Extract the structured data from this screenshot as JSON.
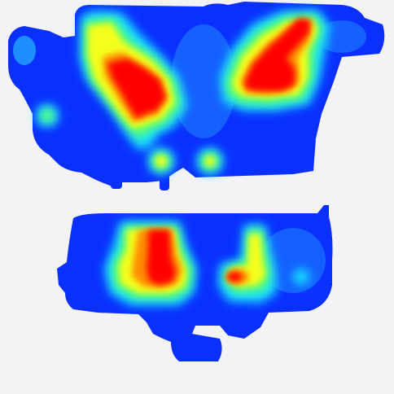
{
  "colors": {
    "background": "#f3f2f4",
    "cold": "#0a30ff",
    "cool": "#1e8fff",
    "cyan": "#19e2ff",
    "green": "#64ff64",
    "yellow": "#f4ff1e",
    "orange": "#ff8c00",
    "hot": "#ff0000"
  },
  "chart_data": {
    "type": "heatmap",
    "title": "",
    "xlabel": "",
    "ylabel": "",
    "legend": "none",
    "grid": false,
    "colormap": [
      "#0a30ff",
      "#1e8fff",
      "#19e2ff",
      "#64ff64",
      "#f4ff1e",
      "#ff8c00",
      "#ff0000"
    ],
    "intensity_scale": [
      0,
      1
    ],
    "regions": [
      {
        "id": "upper-left-cluster",
        "peak_intensity": 1.0
      },
      {
        "id": "upper-right-cluster",
        "peak_intensity": 1.0
      },
      {
        "id": "lower-left-cluster",
        "peak_intensity": 1.0
      },
      {
        "id": "lower-right-cluster",
        "peak_intensity": 0.95
      }
    ]
  }
}
